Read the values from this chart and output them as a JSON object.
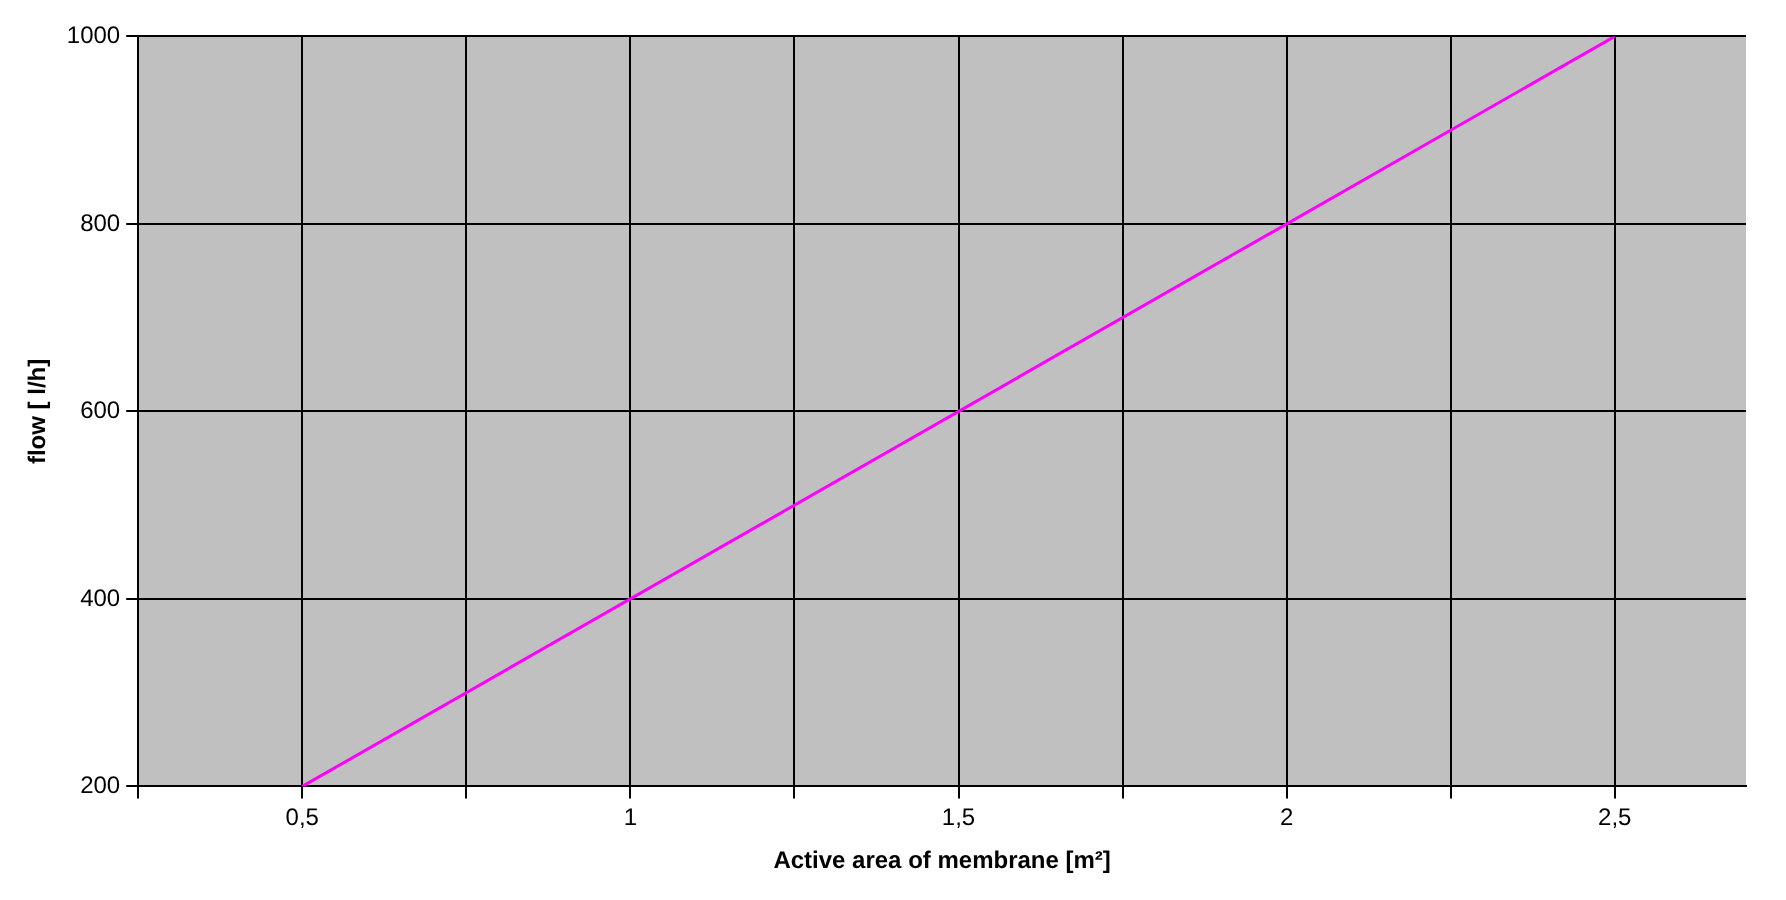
{
  "chart_data": {
    "type": "line",
    "xlabel": "Active area of membrane [m²]",
    "ylabel": "flow [ l/h]",
    "x": [
      0.5,
      2.5
    ],
    "series": [
      {
        "color": "#ff00ff",
        "values": [
          200,
          1000
        ]
      }
    ],
    "xlim": [
      0.25,
      2.7
    ],
    "xticks": [
      {
        "value": 0.25,
        "label": null
      },
      {
        "value": 0.5,
        "label": "0,5"
      },
      {
        "value": 0.75,
        "label": null
      },
      {
        "value": 1,
        "label": "1"
      },
      {
        "value": 1.25,
        "label": null
      },
      {
        "value": 1.5,
        "label": "1,5"
      },
      {
        "value": 1.75,
        "label": null
      },
      {
        "value": 2,
        "label": "2"
      },
      {
        "value": 2.25,
        "label": null
      },
      {
        "value": 2.5,
        "label": "2,5"
      }
    ],
    "ylim": [
      200,
      1000
    ],
    "yticks": [
      200,
      400,
      600,
      800,
      1000
    ],
    "grid": true,
    "legend": false,
    "marker": "none",
    "line_style": "solid"
  }
}
